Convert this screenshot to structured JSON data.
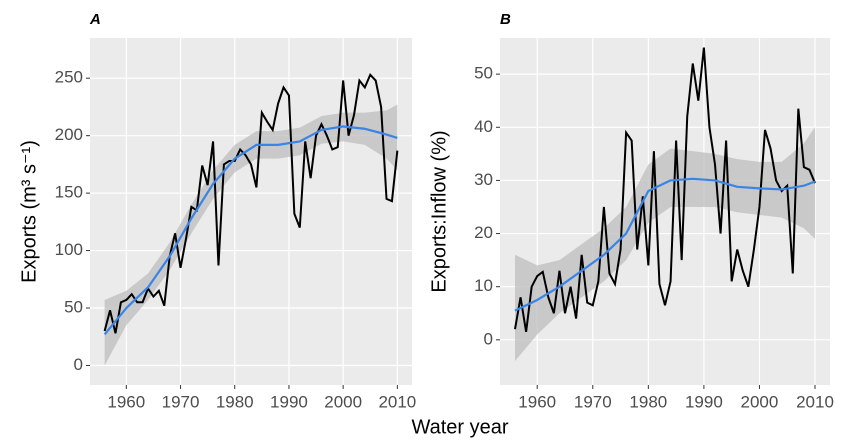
{
  "x_label": "Water year",
  "chart_data": [
    {
      "type": "line",
      "title": "A",
      "ylabel": "Exports (m³ s⁻¹)",
      "x": [
        1956,
        1957,
        1958,
        1959,
        1960,
        1961,
        1962,
        1963,
        1964,
        1965,
        1966,
        1967,
        1968,
        1969,
        1970,
        1971,
        1972,
        1973,
        1974,
        1975,
        1976,
        1977,
        1978,
        1979,
        1980,
        1981,
        1982,
        1983,
        1984,
        1985,
        1986,
        1987,
        1988,
        1989,
        1990,
        1991,
        1992,
        1993,
        1994,
        1995,
        1996,
        1997,
        1998,
        1999,
        2000,
        2001,
        2002,
        2003,
        2004,
        2005,
        2006,
        2007,
        2008,
        2009,
        2010
      ],
      "values": [
        30,
        48,
        28,
        55,
        57,
        62,
        55,
        55,
        67,
        60,
        65,
        52,
        95,
        115,
        85,
        110,
        138,
        135,
        174,
        157,
        195,
        87,
        175,
        178,
        178,
        188,
        183,
        175,
        155,
        220,
        212,
        205,
        228,
        242,
        235,
        132,
        120,
        195,
        163,
        200,
        210,
        200,
        188,
        190,
        248,
        200,
        218,
        248,
        242,
        253,
        248,
        225,
        145,
        143,
        187
      ],
      "color": "#000000",
      "smooth": {
        "x": [
          1956,
          1960,
          1964,
          1968,
          1972,
          1976,
          1980,
          1984,
          1988,
          1992,
          1996,
          2000,
          2004,
          2008,
          2010
        ],
        "values": [
          27,
          50,
          68,
          95,
          128,
          158,
          180,
          192,
          192,
          195,
          205,
          208,
          206,
          201,
          198
        ],
        "lower": [
          0,
          35,
          57,
          83,
          115,
          145,
          168,
          180,
          180,
          183,
          193,
          195,
          192,
          180,
          170
        ],
        "upper": [
          57,
          65,
          80,
          107,
          140,
          170,
          192,
          204,
          204,
          207,
          217,
          220,
          220,
          222,
          227
        ],
        "color": "#3a84e6",
        "band_color": "#bdbdbd"
      },
      "xlim": [
        1953.3,
        2012.7
      ],
      "xticks": [
        1960,
        1970,
        1980,
        1990,
        2000,
        2010
      ],
      "ylim": [
        -17,
        285
      ],
      "yticks": [
        0,
        50,
        100,
        150,
        200,
        250
      ],
      "grid": true
    },
    {
      "type": "line",
      "title": "B",
      "ylabel": "Exports:Inflow (%)",
      "x": [
        1956,
        1957,
        1958,
        1959,
        1960,
        1961,
        1962,
        1963,
        1964,
        1965,
        1966,
        1967,
        1968,
        1969,
        1970,
        1971,
        1972,
        1973,
        1974,
        1975,
        1976,
        1977,
        1978,
        1979,
        1980,
        1981,
        1982,
        1983,
        1984,
        1985,
        1986,
        1987,
        1988,
        1989,
        1990,
        1991,
        1992,
        1993,
        1994,
        1995,
        1996,
        1997,
        1998,
        1999,
        2000,
        2001,
        2002,
        2003,
        2004,
        2005,
        2006,
        2007,
        2008,
        2009,
        2010
      ],
      "values": [
        2,
        8,
        1.5,
        10,
        12,
        12.8,
        8,
        5,
        13,
        5,
        10,
        4,
        16,
        7,
        6.5,
        11,
        25,
        12.5,
        10.5,
        17,
        39,
        37.5,
        17,
        27,
        14,
        35.5,
        10.5,
        6.5,
        11,
        37.5,
        15,
        42,
        52,
        45,
        55,
        40,
        33,
        20,
        37.5,
        11,
        17,
        13,
        10,
        17,
        25,
        39.5,
        36,
        30,
        28,
        29,
        12.5,
        43.5,
        32.5,
        32,
        29.5
      ],
      "color": "#000000",
      "smooth": {
        "x": [
          1956,
          1960,
          1964,
          1968,
          1972,
          1976,
          1980,
          1984,
          1988,
          1992,
          1996,
          2000,
          2004,
          2008,
          2010
        ],
        "values": [
          5.5,
          7.5,
          10,
          13,
          16,
          20,
          28,
          30,
          30.3,
          30,
          28.8,
          28.5,
          28.3,
          29,
          29.8
        ],
        "lower": [
          -4,
          1,
          5,
          8,
          11,
          15,
          22,
          25,
          25,
          25,
          24,
          23.5,
          23,
          21,
          19
        ],
        "upper": [
          16,
          14,
          15,
          18,
          21,
          25,
          33,
          36,
          35.5,
          35,
          34,
          33.5,
          33.5,
          37,
          40
        ],
        "color": "#3a84e6",
        "band_color": "#bdbdbd"
      },
      "xlim": [
        1953.3,
        2012.7
      ],
      "xticks": [
        1960,
        1970,
        1980,
        1990,
        2000,
        2010
      ],
      "ylim": [
        -8.5,
        56.8
      ],
      "yticks": [
        0,
        10,
        20,
        30,
        40,
        50
      ],
      "grid": true
    }
  ]
}
